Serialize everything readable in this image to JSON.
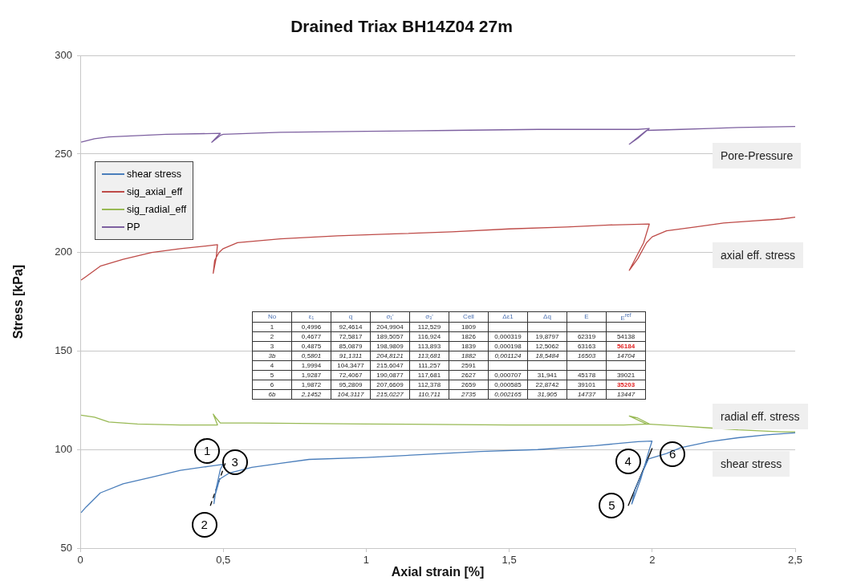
{
  "chart_data": {
    "type": "line",
    "title": "Drained Triax BH14Z04 27m",
    "xlabel": "Axial strain [%]",
    "ylabel": "Stress [kPa]",
    "xlim": [
      0,
      2.5
    ],
    "xticks": [
      0,
      {
        "value": 0.5,
        "label": "0,5"
      },
      1,
      {
        "value": 1.5,
        "label": "1,5"
      },
      2,
      {
        "value": 2.5,
        "label": "2,5"
      }
    ],
    "ylim": [
      50,
      300
    ],
    "yticks": [
      50,
      100,
      150,
      200,
      250,
      300
    ],
    "grid": "y",
    "legend": "top left",
    "marker": "none",
    "line_style": "solid",
    "series": [
      {
        "name": "shear stress",
        "color": "#4a7ebb",
        "x": [
          0.003,
          0.02,
          0.07,
          0.15,
          0.25,
          0.35,
          0.45,
          0.4996,
          0.49,
          0.475,
          0.4677,
          0.47,
          0.4875,
          0.52,
          0.6,
          0.7,
          0.8,
          1.0,
          1.2,
          1.4,
          1.6,
          1.8,
          1.95,
          1.9994,
          1.99,
          1.96,
          1.9287,
          1.94,
          1.9872,
          2.05,
          2.1,
          2.2,
          2.3,
          2.4,
          2.5
        ],
        "values": [
          68,
          70.8,
          78,
          82.6,
          86,
          89.5,
          91.5,
          92.5,
          90,
          80,
          72.6,
          76,
          85,
          88,
          91,
          93,
          95,
          96,
          97.5,
          99,
          100,
          102,
          104,
          104.3,
          100,
          85,
          72.4,
          80,
          95.3,
          98,
          101,
          104,
          106,
          107.5,
          108.5
        ]
      },
      {
        "name": "sig_axial_eff",
        "color": "#be4b48",
        "x": [
          0.003,
          0.02,
          0.07,
          0.15,
          0.25,
          0.35,
          0.45,
          0.48,
          0.475,
          0.465,
          0.47,
          0.485,
          0.5,
          0.55,
          0.7,
          0.9,
          1.1,
          1.3,
          1.5,
          1.7,
          1.85,
          1.99,
          1.97,
          1.92,
          1.95,
          1.98,
          2.0,
          2.05,
          2.15,
          2.25,
          2.35,
          2.45,
          2.5
        ],
        "values": [
          186,
          187.8,
          193.1,
          196.6,
          200,
          202,
          203.5,
          204,
          197,
          189.5,
          196,
          200,
          202,
          205,
          207,
          208.5,
          209.5,
          210.5,
          212,
          213,
          214,
          214.5,
          205,
          191,
          197,
          205,
          208,
          211,
          213,
          215,
          216,
          217,
          218
        ]
      },
      {
        "name": "sig_radial_eff",
        "color": "#98b954",
        "x": [
          0.003,
          0.05,
          0.1,
          0.2,
          0.35,
          0.48,
          0.465,
          0.475,
          0.49,
          0.6,
          1.0,
          1.5,
          1.9,
          1.99,
          1.95,
          1.92,
          1.95,
          1.98,
          2.1,
          2.2,
          2.3,
          2.45,
          2.5
        ],
        "values": [
          117.5,
          116.4,
          114,
          113,
          112.5,
          112.5,
          118,
          116,
          113.5,
          113.5,
          113,
          112.5,
          112.5,
          113,
          116,
          117,
          115,
          113,
          112,
          111,
          110,
          109,
          109
        ]
      },
      {
        "name": "PP",
        "color": "#7d60a0",
        "x": [
          0.003,
          0.05,
          0.1,
          0.3,
          0.49,
          0.47,
          0.46,
          0.49,
          0.5,
          0.7,
          1.0,
          1.3,
          1.6,
          1.95,
          1.99,
          1.95,
          1.92,
          1.98,
          2.1,
          2.2,
          2.3,
          2.5
        ],
        "values": [
          256,
          257.8,
          258.7,
          260,
          260.5,
          257.5,
          256,
          259.5,
          260,
          261,
          261.5,
          262,
          262.5,
          262.5,
          263,
          258,
          255,
          262,
          262.5,
          263,
          263.5,
          264
        ]
      },
      {
        "type": "line",
        "color": "#000000",
        "line_style": "dashed",
        "x": [
          0.455,
          0.508
        ],
        "values": [
          71.5,
          93.4
        ]
      },
      {
        "type": "line",
        "color": "#000000",
        "line_style": "solid",
        "x": [
          1.916,
          2.0
        ],
        "values": [
          71.5,
          100.7
        ]
      }
    ],
    "annotations": [
      "Pore-Pressure",
      "axial eff. stress",
      "radial eff. stress",
      "shear stress",
      "No\tε₁\tq\tσ₁'\tσ₃'\tCell\tΔε1\tΔq\tE\tE$^{ref}$",
      "1\t0,4996\t92,4614\t204,9904\t112,529\t1809\t\t\t\t",
      "2\t0,4677\t72,5817\t189,5057\t116,924\t1826\t0,000319\t19,8797\t62319\t54138",
      "3\t0,4875\t85,0879\t198,9809\t113,893\t1839\t0,000198\t12,5062\t63163\t56184",
      "3b\t0,5801\t91,1311\t204,8121\t113,681\t1882\t0,001124\t18,5484\t16503\t14704",
      "4\t1,9994\t104,3477\t215,6047\t111,257\t2591\t\t\t\t",
      "5\t1,9287\t72,4067\t190,0877\t117,681\t2627\t0,000707\t31,941\t45178\t39021",
      "6\t1,9872\t95,2809\t207,6609\t112,378\t2659\t0,000585\t22,8742\t39101\t35203",
      "6b\t2,1452\t104,3117\t215,0227\t110,711\t2735\t0,002165\t31,905\t14737\t13447",
      {
        "text": "1",
        "x": 0.4996,
        "y": 92.4614
      },
      {
        "text": "2",
        "x": 0.4677,
        "y": 72.5817
      },
      {
        "text": "3",
        "x": 0.4875,
        "y": 85.0879
      },
      {
        "text": "4",
        "x": 1.9994,
        "y": 104.3477
      },
      {
        "text": "5",
        "x": 1.9287,
        "y": 72.4067
      },
      {
        "text": "6",
        "x": 1.9872,
        "y": 95.2809
      }
    ]
  }
}
